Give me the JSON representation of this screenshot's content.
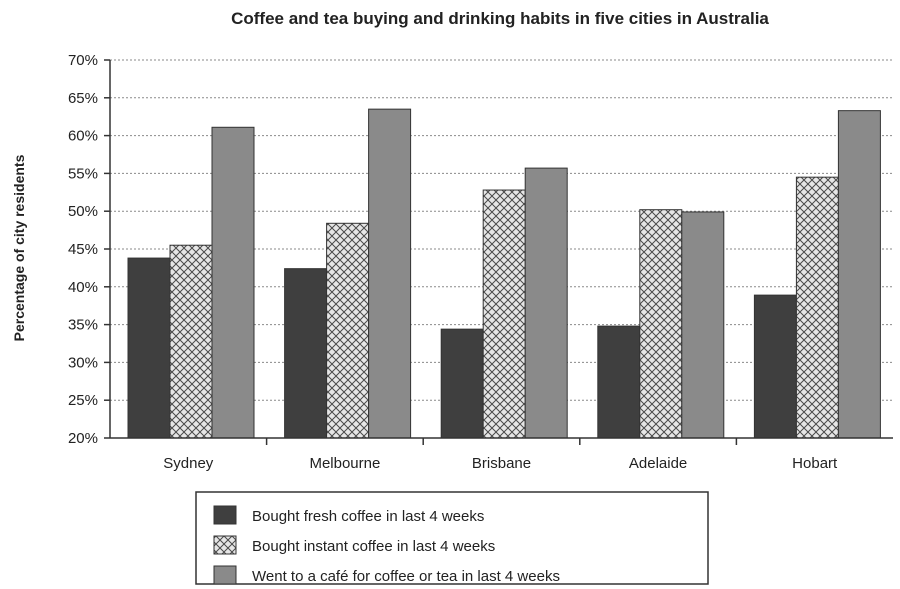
{
  "chart_data": {
    "type": "bar",
    "title": "Coffee and tea buying and drinking habits in five cities in Australia",
    "xlabel": "",
    "ylabel": "Percentage of city residents",
    "categories": [
      "Sydney",
      "Melbourne",
      "Brisbane",
      "Adelaide",
      "Hobart"
    ],
    "series": [
      {
        "name": "Bought fresh coffee in last 4 weeks",
        "values": [
          43.8,
          42.4,
          34.4,
          34.8,
          38.9
        ],
        "color": "#3f3f3f",
        "pattern": "solid"
      },
      {
        "name": "Bought instant coffee in last 4 weeks",
        "values": [
          45.5,
          48.4,
          52.8,
          50.2,
          54.5
        ],
        "color": "#d9d9d9",
        "pattern": "crosshatch"
      },
      {
        "name": "Went to a café for coffee or tea in last 4 weeks",
        "values": [
          61.1,
          63.5,
          55.7,
          49.9,
          63.3
        ],
        "color": "#8a8a8a",
        "pattern": "solid"
      }
    ],
    "ylim": [
      20,
      70
    ],
    "yticks": [
      "20%",
      "25%",
      "30%",
      "35%",
      "40%",
      "45%",
      "50%",
      "55%",
      "60%",
      "65%",
      "70%"
    ],
    "grid": "horizontal-dotted",
    "legend": "bottom"
  }
}
